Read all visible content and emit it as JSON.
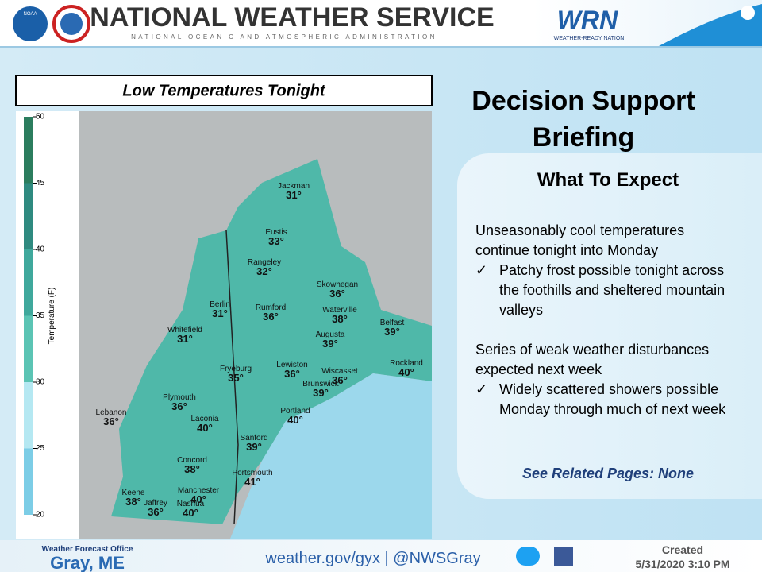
{
  "header": {
    "title": "NATIONAL WEATHER SERVICE",
    "subtitle": "NATIONAL OCEANIC AND ATMOSPHERIC ADMINISTRATION",
    "logo_text": "NOAA",
    "wrn": "WRN",
    "wrn_tagline": "WEATHER-READY NATION"
  },
  "map": {
    "title": "Low Temperatures Tonight",
    "colorbar": {
      "label": "Temperature (F)",
      "ticks": [
        20,
        25,
        30,
        35,
        40,
        45,
        50
      ]
    },
    "cities": [
      {
        "name": "Jackman",
        "temp": "31°"
      },
      {
        "name": "Eustis",
        "temp": "33°"
      },
      {
        "name": "Rangeley",
        "temp": "32°"
      },
      {
        "name": "Skowhegan",
        "temp": "36°"
      },
      {
        "name": "Berlin",
        "temp": "31°"
      },
      {
        "name": "Rumford",
        "temp": "36°"
      },
      {
        "name": "Waterville",
        "temp": "38°"
      },
      {
        "name": "Belfast",
        "temp": "39°"
      },
      {
        "name": "Whitefield",
        "temp": "31°"
      },
      {
        "name": "Augusta",
        "temp": "39°"
      },
      {
        "name": "Rockland",
        "temp": "40°"
      },
      {
        "name": "Fryeburg",
        "temp": "35°"
      },
      {
        "name": "Lewiston",
        "temp": "36°"
      },
      {
        "name": "Wiscasset",
        "temp": "36°"
      },
      {
        "name": "Brunswick",
        "temp": "39°"
      },
      {
        "name": "Plymouth",
        "temp": "36°"
      },
      {
        "name": "Lebanon",
        "temp": "36°"
      },
      {
        "name": "Portland",
        "temp": "40°"
      },
      {
        "name": "Laconia",
        "temp": "40°"
      },
      {
        "name": "Sanford",
        "temp": "39°"
      },
      {
        "name": "Concord",
        "temp": "38°"
      },
      {
        "name": "Portsmouth",
        "temp": "41°"
      },
      {
        "name": "Keene",
        "temp": "38°"
      },
      {
        "name": "Manchester",
        "temp": "40°"
      },
      {
        "name": "Jaffrey",
        "temp": "36°"
      },
      {
        "name": "Nashua",
        "temp": "40°"
      }
    ]
  },
  "briefing": {
    "title": "Decision Support Briefing",
    "section": "What To Expect",
    "blocks": [
      {
        "text": "Unseasonably cool temperatures continue tonight into Monday",
        "bullet": "Patchy frost possible tonight across the foothills and sheltered mountain valleys"
      },
      {
        "text": "Series of weak weather disturbances expected next week",
        "bullet": "Widely scattered showers possible Monday through much of next week"
      }
    ],
    "related": "See Related Pages: None"
  },
  "footer": {
    "office_label": "Weather Forecast Office",
    "office": "Gray, ME",
    "links": "weather.gov/gyx | @NWSGray",
    "created_label": "Created",
    "created": "5/31/2020 3:10 PM"
  }
}
